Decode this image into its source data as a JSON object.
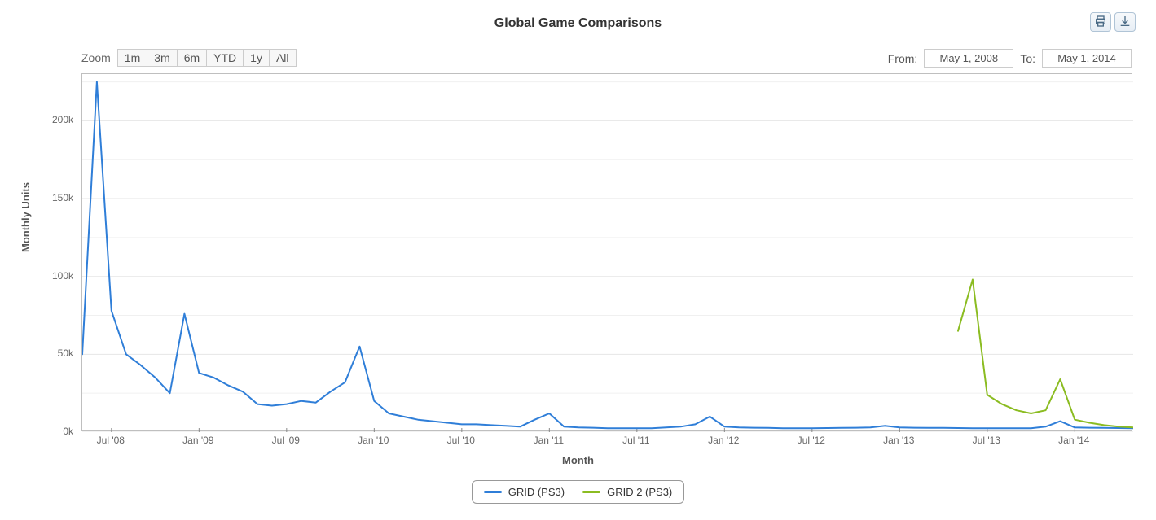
{
  "title": "Global Game Comparisons",
  "zoom_label": "Zoom",
  "zoom_buttons": [
    "1m",
    "3m",
    "6m",
    "YTD",
    "1y",
    "All"
  ],
  "from_label": "From:",
  "to_label": "To:",
  "from_value": "May 1, 2008",
  "to_value": "May 1, 2014",
  "y_axis_label": "Monthly Units",
  "x_axis_label": "Month",
  "chart": {
    "type": "line",
    "x_min_month": 0,
    "x_max_month": 72,
    "y_min": 0,
    "y_max": 230000,
    "y_ticks": [
      0,
      50000,
      100000,
      150000,
      200000
    ],
    "y_tick_labels": [
      "0k",
      "50k",
      "100k",
      "150k",
      "200k"
    ],
    "x_ticks_months": [
      2,
      8,
      14,
      20,
      26,
      32,
      38,
      44,
      50,
      56,
      62,
      68
    ],
    "x_tick_labels": [
      "Jul '08",
      "Jan '09",
      "Jul '09",
      "Jan '10",
      "Jul '10",
      "Jan '11",
      "Jul '11",
      "Jan '12",
      "Jul '12",
      "Jan '13",
      "Jul '13",
      "Jan '14"
    ],
    "gridline_color": "#e6e6e6",
    "plot_border_color": "#bfbfbf",
    "font_color": "#666666",
    "background_color": "#ffffff",
    "line_width": 2,
    "series": [
      {
        "name": "GRID (PS3)",
        "color": "#2f7ed8",
        "points": [
          [
            0,
            50000
          ],
          [
            1,
            225000
          ],
          [
            2,
            78000
          ],
          [
            3,
            50000
          ],
          [
            4,
            43000
          ],
          [
            5,
            35000
          ],
          [
            6,
            25000
          ],
          [
            7,
            76000
          ],
          [
            8,
            38000
          ],
          [
            9,
            35000
          ],
          [
            10,
            30000
          ],
          [
            11,
            26000
          ],
          [
            12,
            18000
          ],
          [
            13,
            17000
          ],
          [
            14,
            18000
          ],
          [
            15,
            20000
          ],
          [
            16,
            19000
          ],
          [
            17,
            26000
          ],
          [
            18,
            32000
          ],
          [
            19,
            55000
          ],
          [
            20,
            20000
          ],
          [
            21,
            12000
          ],
          [
            22,
            10000
          ],
          [
            23,
            8000
          ],
          [
            24,
            7000
          ],
          [
            25,
            6000
          ],
          [
            26,
            5000
          ],
          [
            27,
            5000
          ],
          [
            28,
            4500
          ],
          [
            29,
            4000
          ],
          [
            30,
            3500
          ],
          [
            31,
            8000
          ],
          [
            32,
            12000
          ],
          [
            33,
            3500
          ],
          [
            34,
            3000
          ],
          [
            35,
            2800
          ],
          [
            36,
            2500
          ],
          [
            37,
            2500
          ],
          [
            38,
            2500
          ],
          [
            39,
            2500
          ],
          [
            40,
            3000
          ],
          [
            41,
            3500
          ],
          [
            42,
            5000
          ],
          [
            43,
            10000
          ],
          [
            44,
            3500
          ],
          [
            45,
            3000
          ],
          [
            46,
            2800
          ],
          [
            47,
            2700
          ],
          [
            48,
            2500
          ],
          [
            49,
            2500
          ],
          [
            50,
            2500
          ],
          [
            51,
            2600
          ],
          [
            52,
            2700
          ],
          [
            53,
            2800
          ],
          [
            54,
            3000
          ],
          [
            55,
            4000
          ],
          [
            56,
            3000
          ],
          [
            57,
            2800
          ],
          [
            58,
            2700
          ],
          [
            59,
            2700
          ],
          [
            60,
            2600
          ],
          [
            61,
            2500
          ],
          [
            62,
            2500
          ],
          [
            63,
            2500
          ],
          [
            64,
            2500
          ],
          [
            65,
            2500
          ],
          [
            66,
            3500
          ],
          [
            67,
            7000
          ],
          [
            68,
            3000
          ],
          [
            69,
            2800
          ],
          [
            70,
            2700
          ],
          [
            71,
            2600
          ],
          [
            72,
            2500
          ]
        ]
      },
      {
        "name": "GRID 2 (PS3)",
        "color": "#8bbc21",
        "points": [
          [
            60,
            65000
          ],
          [
            61,
            98000
          ],
          [
            62,
            24000
          ],
          [
            63,
            18000
          ],
          [
            64,
            14000
          ],
          [
            65,
            12000
          ],
          [
            66,
            14000
          ],
          [
            67,
            34000
          ],
          [
            68,
            8000
          ],
          [
            69,
            6000
          ],
          [
            70,
            4500
          ],
          [
            71,
            3500
          ],
          [
            72,
            3000
          ]
        ]
      }
    ]
  },
  "legend_items": [
    {
      "label": "GRID (PS3)",
      "color": "#2f7ed8"
    },
    {
      "label": "GRID 2 (PS3)",
      "color": "#8bbc21"
    }
  ],
  "icons": {
    "print": "print-icon",
    "download": "download-icon"
  }
}
